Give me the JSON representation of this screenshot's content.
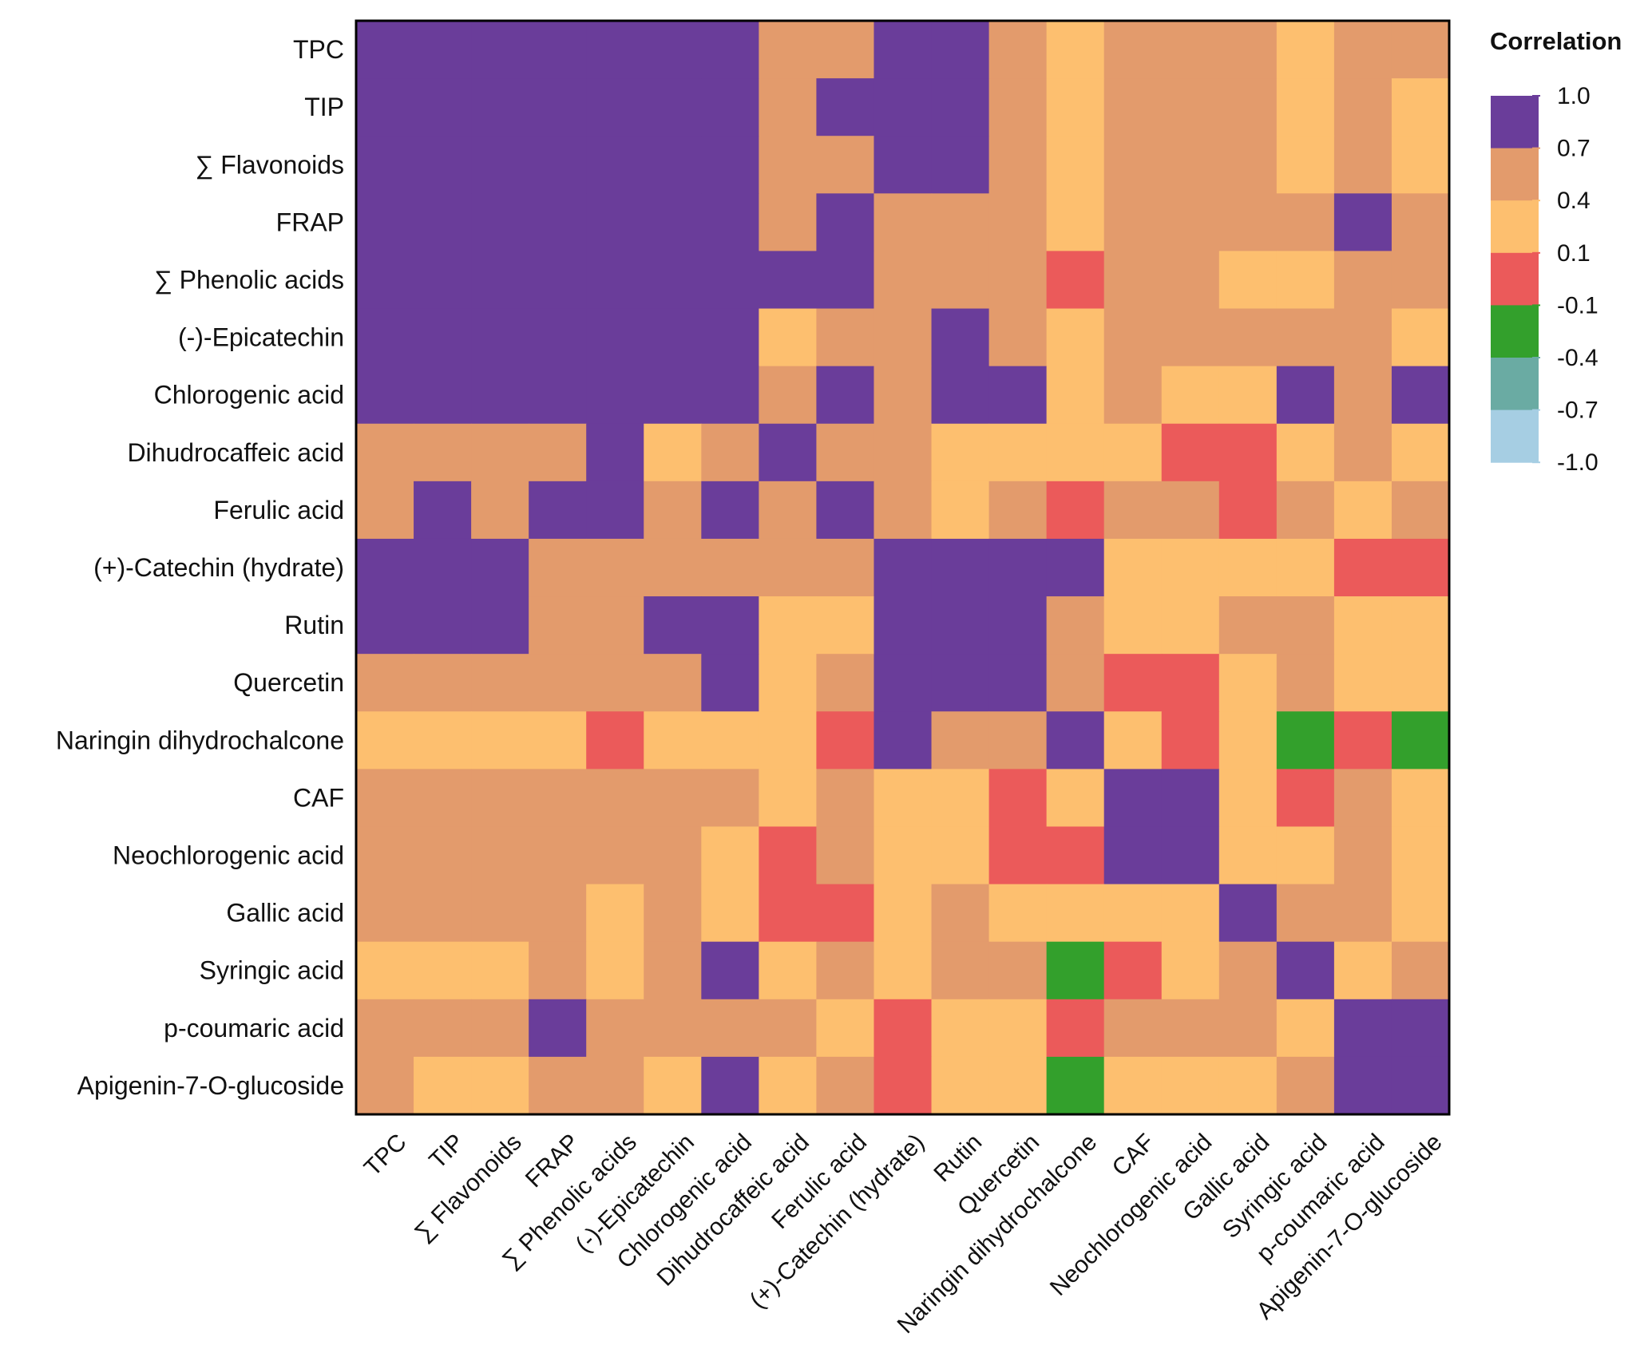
{
  "chart_data": {
    "type": "heatmap",
    "title": "",
    "legend_title": "Correlation",
    "variables": [
      "TPC",
      "TIP",
      "∑ Flavonoids",
      "FRAP",
      "∑ Phenolic acids",
      "(-)-Epicatechin",
      "Chlorogenic acid",
      "Dihudrocaffeic acid",
      "Ferulic acid",
      "(+)-Catechin (hydrate)",
      "Rutin",
      "Quercetin",
      "Naringin dihydrochalcone",
      "CAF",
      "Neochlorogenic acid",
      "Gallic acid",
      "Syringic acid",
      "p-coumaric acid",
      "Apigenin-7-O-glucoside"
    ],
    "value_note": "Correlation class per cell, represented by bin midpoint of the legend scale",
    "values": [
      [
        0.85,
        0.85,
        0.85,
        0.85,
        0.85,
        0.85,
        0.85,
        0.55,
        0.55,
        0.85,
        0.85,
        0.55,
        0.25,
        0.55,
        0.55,
        0.55,
        0.25,
        0.55,
        0.55
      ],
      [
        0.85,
        0.85,
        0.85,
        0.85,
        0.85,
        0.85,
        0.85,
        0.55,
        0.85,
        0.85,
        0.85,
        0.55,
        0.25,
        0.55,
        0.55,
        0.55,
        0.25,
        0.55,
        0.25
      ],
      [
        0.85,
        0.85,
        0.85,
        0.85,
        0.85,
        0.85,
        0.85,
        0.55,
        0.55,
        0.85,
        0.85,
        0.55,
        0.25,
        0.55,
        0.55,
        0.55,
        0.25,
        0.55,
        0.25
      ],
      [
        0.85,
        0.85,
        0.85,
        0.85,
        0.85,
        0.85,
        0.85,
        0.55,
        0.85,
        0.55,
        0.55,
        0.55,
        0.25,
        0.55,
        0.55,
        0.55,
        0.55,
        0.85,
        0.55
      ],
      [
        0.85,
        0.85,
        0.85,
        0.85,
        0.85,
        0.85,
        0.85,
        0.85,
        0.85,
        0.55,
        0.55,
        0.55,
        0.0,
        0.55,
        0.55,
        0.25,
        0.25,
        0.55,
        0.55
      ],
      [
        0.85,
        0.85,
        0.85,
        0.85,
        0.85,
        0.85,
        0.85,
        0.25,
        0.55,
        0.55,
        0.85,
        0.55,
        0.25,
        0.55,
        0.55,
        0.55,
        0.55,
        0.55,
        0.25
      ],
      [
        0.85,
        0.85,
        0.85,
        0.85,
        0.85,
        0.85,
        0.85,
        0.55,
        0.85,
        0.55,
        0.85,
        0.85,
        0.25,
        0.55,
        0.25,
        0.25,
        0.85,
        0.55,
        0.85
      ],
      [
        0.55,
        0.55,
        0.55,
        0.55,
        0.85,
        0.25,
        0.55,
        0.85,
        0.55,
        0.55,
        0.25,
        0.25,
        0.25,
        0.25,
        0.0,
        0.0,
        0.25,
        0.55,
        0.25
      ],
      [
        0.55,
        0.85,
        0.55,
        0.85,
        0.85,
        0.55,
        0.85,
        0.55,
        0.85,
        0.55,
        0.25,
        0.55,
        0.0,
        0.55,
        0.55,
        0.0,
        0.55,
        0.25,
        0.55
      ],
      [
        0.85,
        0.85,
        0.85,
        0.55,
        0.55,
        0.55,
        0.55,
        0.55,
        0.55,
        0.85,
        0.85,
        0.85,
        0.85,
        0.25,
        0.25,
        0.25,
        0.25,
        0.0,
        0.0
      ],
      [
        0.85,
        0.85,
        0.85,
        0.55,
        0.55,
        0.85,
        0.85,
        0.25,
        0.25,
        0.85,
        0.85,
        0.85,
        0.55,
        0.25,
        0.25,
        0.55,
        0.55,
        0.25,
        0.25
      ],
      [
        0.55,
        0.55,
        0.55,
        0.55,
        0.55,
        0.55,
        0.85,
        0.25,
        0.55,
        0.85,
        0.85,
        0.85,
        0.55,
        0.0,
        0.0,
        0.25,
        0.55,
        0.25,
        0.25
      ],
      [
        0.25,
        0.25,
        0.25,
        0.25,
        0.0,
        0.25,
        0.25,
        0.25,
        0.0,
        0.85,
        0.55,
        0.55,
        0.85,
        0.25,
        0.0,
        0.25,
        -0.25,
        0.0,
        -0.25
      ],
      [
        0.55,
        0.55,
        0.55,
        0.55,
        0.55,
        0.55,
        0.55,
        0.25,
        0.55,
        0.25,
        0.25,
        0.0,
        0.25,
        0.85,
        0.85,
        0.25,
        0.0,
        0.55,
        0.25
      ],
      [
        0.55,
        0.55,
        0.55,
        0.55,
        0.55,
        0.55,
        0.25,
        0.0,
        0.55,
        0.25,
        0.25,
        0.0,
        0.0,
        0.85,
        0.85,
        0.25,
        0.25,
        0.55,
        0.25
      ],
      [
        0.55,
        0.55,
        0.55,
        0.55,
        0.25,
        0.55,
        0.25,
        0.0,
        0.0,
        0.25,
        0.55,
        0.25,
        0.25,
        0.25,
        0.25,
        0.85,
        0.55,
        0.55,
        0.25
      ],
      [
        0.25,
        0.25,
        0.25,
        0.55,
        0.25,
        0.55,
        0.85,
        0.25,
        0.55,
        0.25,
        0.55,
        0.55,
        -0.25,
        0.0,
        0.25,
        0.55,
        0.85,
        0.25,
        0.55
      ],
      [
        0.55,
        0.55,
        0.55,
        0.85,
        0.55,
        0.55,
        0.55,
        0.55,
        0.25,
        0.0,
        0.25,
        0.25,
        0.0,
        0.55,
        0.55,
        0.55,
        0.25,
        0.85,
        0.85
      ],
      [
        0.55,
        0.25,
        0.25,
        0.55,
        0.55,
        0.25,
        0.85,
        0.25,
        0.55,
        0.0,
        0.25,
        0.25,
        -0.25,
        0.25,
        0.25,
        0.25,
        0.55,
        0.85,
        0.85
      ]
    ],
    "color_scale": {
      "bins": [
        {
          "min": 0.7,
          "max": 1.0,
          "color": "#6a3d9a"
        },
        {
          "min": 0.4,
          "max": 0.7,
          "color": "#e39b6c"
        },
        {
          "min": 0.1,
          "max": 0.4,
          "color": "#fdbf6f"
        },
        {
          "min": -0.1,
          "max": 0.1,
          "color": "#eb5a5a"
        },
        {
          "min": -0.4,
          "max": -0.1,
          "color": "#33a02c"
        },
        {
          "min": -0.7,
          "max": -0.4,
          "color": "#6aaba3"
        },
        {
          "min": -1.0,
          "max": -0.7,
          "color": "#a6cee3"
        }
      ],
      "ticks": [
        "1.0",
        "0.7",
        "0.4",
        "0.1",
        "-0.1",
        "-0.4",
        "-0.7",
        "-1.0"
      ]
    }
  }
}
